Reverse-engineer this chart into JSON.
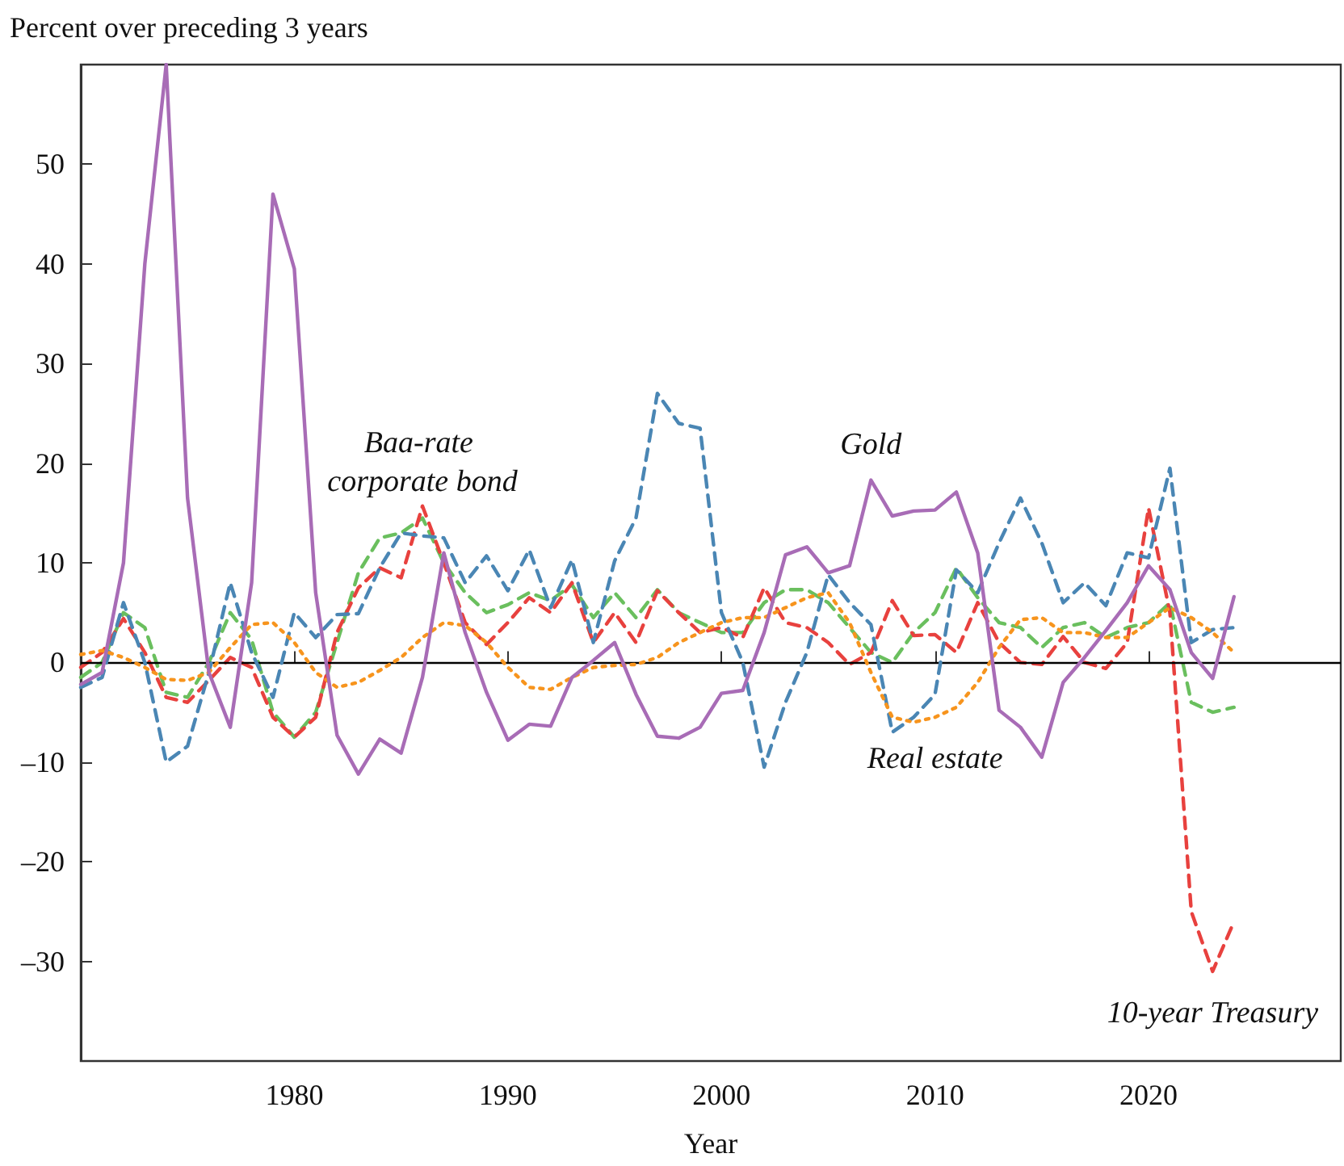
{
  "chart_data": {
    "type": "line",
    "ylabel": "Percent over preceding 3 years",
    "xlabel": "Year",
    "x": [
      1970,
      1971,
      1972,
      1973,
      1974,
      1975,
      1976,
      1977,
      1978,
      1979,
      1980,
      1981,
      1982,
      1983,
      1984,
      1985,
      1986,
      1987,
      1988,
      1989,
      1990,
      1991,
      1992,
      1993,
      1994,
      1995,
      1996,
      1997,
      1998,
      1999,
      2000,
      2001,
      2002,
      2003,
      2004,
      2005,
      2006,
      2007,
      2008,
      2009,
      2010,
      2011,
      2012,
      2013,
      2014,
      2015,
      2016,
      2017,
      2018,
      2019,
      2020,
      2021,
      2022,
      2023,
      2024
    ],
    "series": [
      {
        "color": "#6abf5e",
        "line_style": "dashed",
        "values": [
          -1.5,
          0,
          5,
          3.5,
          -3,
          -3.5,
          0,
          5,
          2.3,
          -5,
          -7.5,
          -5,
          2,
          9,
          12.5,
          13,
          14.5,
          10,
          7,
          5,
          5.8,
          7,
          6.2,
          7.8,
          4.5,
          7,
          4.5,
          7.3,
          5,
          4,
          3,
          3,
          6,
          7.3,
          7.3,
          6,
          3.5,
          1,
          0,
          3,
          5,
          9.5,
          6.5,
          4,
          3.5,
          1.5,
          3.5,
          4,
          2.5,
          3.5,
          4,
          6,
          -4,
          -5,
          -4.5
        ]
      },
      {
        "color": "#e8413e",
        "line_style": "dashed",
        "values": [
          -0.5,
          1,
          4.4,
          1,
          -3.5,
          -4,
          -1.8,
          0.5,
          -0.5,
          -5.5,
          -7.5,
          -5.5,
          3,
          7.5,
          9.5,
          8.5,
          15.7,
          10,
          4,
          1.8,
          4,
          6.5,
          5,
          8,
          2,
          5,
          2,
          7.2,
          5,
          3,
          3.5,
          2.5,
          7.5,
          4,
          3.5,
          2,
          -0.2,
          1,
          6.2,
          2.7,
          2.8,
          1,
          6,
          2,
          0,
          -0.2,
          2.6,
          0,
          -0.6,
          2,
          15.5,
          5,
          -25,
          -31,
          -26
        ]
      },
      {
        "color": "#4a86b4",
        "line_style": "dashed",
        "values": [
          -2.5,
          -1.5,
          6,
          0,
          -10,
          -8.4,
          -1,
          8,
          1,
          -3.5,
          5,
          2.5,
          4.8,
          4.9,
          9.5,
          13,
          12.7,
          12.5,
          8,
          10.7,
          7.2,
          11.3,
          5.5,
          10.3,
          2,
          10.2,
          14.5,
          27,
          24,
          23.5,
          5,
          0,
          -10.5,
          -4,
          1,
          8.8,
          6,
          3.8,
          -7,
          -5.5,
          -3.2,
          9.3,
          7,
          12,
          16.5,
          12,
          6,
          8,
          5.7,
          11,
          10.5,
          19.5,
          2,
          3.3,
          3.5
        ]
      },
      {
        "color": "#f7941d",
        "line_style": "dotted",
        "values": [
          0.8,
          1.2,
          0.5,
          -0.5,
          -1.7,
          -1.8,
          -1,
          1.5,
          3.8,
          4,
          2,
          -1,
          -2.5,
          -2,
          -0.8,
          0.5,
          2.5,
          4,
          3.7,
          2,
          -0.5,
          -2.5,
          -2.7,
          -1.5,
          -0.5,
          -0.3,
          -0.2,
          0.5,
          2,
          3,
          4,
          4.5,
          4.5,
          5.5,
          6.5,
          7,
          4,
          -1,
          -5.5,
          -6,
          -5.5,
          -4.5,
          -2,
          1.5,
          4.3,
          4.5,
          3,
          3,
          2.5,
          2.5,
          4,
          5.5,
          4.5,
          3,
          1
        ]
      },
      {
        "color": "#a86cb6",
        "line_style": "solid",
        "values": [
          -2.2,
          -1,
          10,
          40,
          60,
          16.5,
          -1,
          -6.5,
          8,
          47,
          39.5,
          7,
          -7.3,
          -11.2,
          -7.7,
          -9.1,
          -1.5,
          11,
          3,
          -3,
          -7.8,
          -6.2,
          -6.4,
          -1.5,
          0.2,
          2,
          -3.2,
          -7.4,
          -7.6,
          -6.5,
          -3.1,
          -2.8,
          3,
          10.8,
          11.6,
          9,
          9.7,
          18.3,
          14.7,
          15.2,
          15.3,
          17.1,
          11,
          -4.8,
          -6.5,
          -9.5,
          -2,
          0.5,
          3.2,
          6,
          9.7,
          7.3,
          1,
          -1.6,
          6.6
        ]
      }
    ],
    "xlim": [
      1970,
      2029
    ],
    "xticks": [
      1980,
      1990,
      2000,
      2010,
      2020
    ],
    "ylim": [
      -40,
      60
    ],
    "yticks": [
      {
        "value": -30,
        "label": "–30"
      },
      {
        "value": -20,
        "label": "–20"
      },
      {
        "value": -10,
        "label": "–10"
      },
      0,
      10,
      20,
      30,
      40,
      50
    ],
    "ref_lines": [
      {
        "axis": "y",
        "value": 0,
        "color": "#000000"
      }
    ],
    "annotations": [
      {
        "text": "Baa-rate corporate bond",
        "x": 1986,
        "y": 14.5
      },
      {
        "text": "Gold",
        "x": 2007,
        "y": 18.3
      },
      {
        "text": "Real estate",
        "x": 2010,
        "y": -5.5
      },
      {
        "text": "10-year Treasury",
        "x": 2023,
        "y": -31
      }
    ],
    "grid": false,
    "marker": "none"
  }
}
